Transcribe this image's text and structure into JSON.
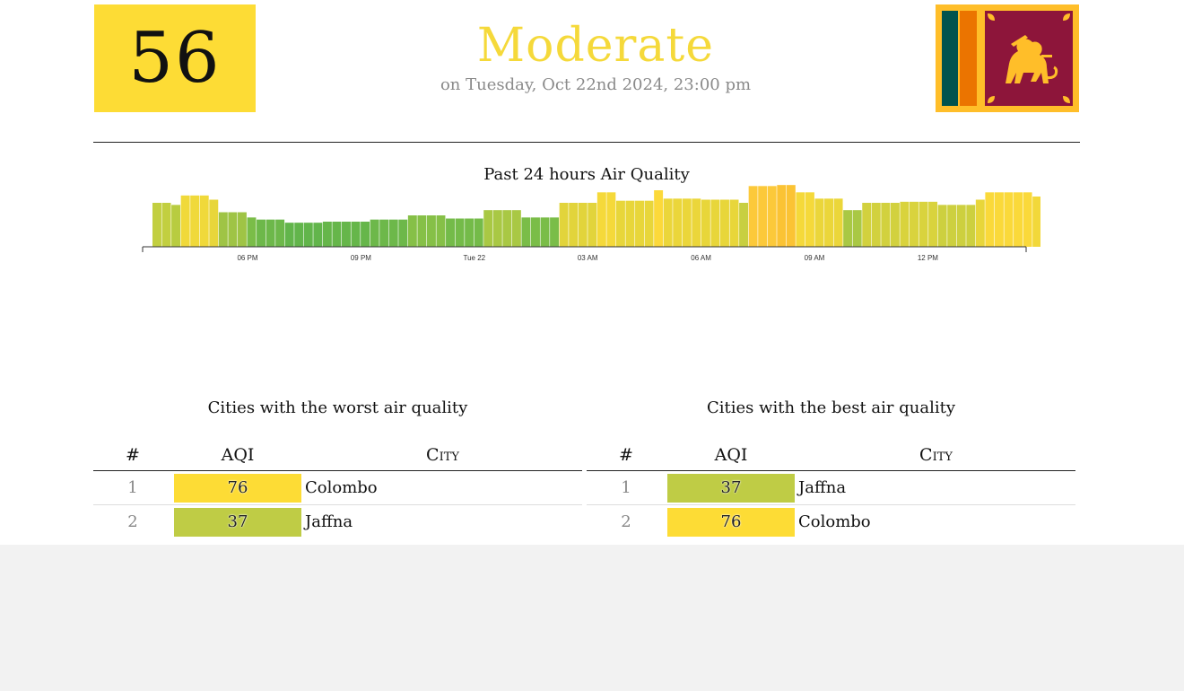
{
  "header": {
    "aqi_value": "56",
    "aqi_color": "#fddc35",
    "status": "Moderate",
    "status_color": "#f5d93a",
    "timestamp": "on Tuesday, Oct 22nd 2024, 23:00 pm",
    "flag_icon": "sri-lanka-flag-icon"
  },
  "chart_data": {
    "type": "bar",
    "title": "Past 24 hours Air Quality",
    "xlabel": "",
    "ylabel": "",
    "tick_labels": [
      "06 PM",
      "09 PM",
      "Tue 22",
      "03 AM",
      "06 AM",
      "09 AM",
      "12 PM"
    ],
    "values": [
      42,
      42,
      40,
      49,
      49,
      49,
      45,
      33,
      33,
      33,
      28,
      26,
      26,
      26,
      23,
      23,
      23,
      23,
      24,
      24,
      24,
      24,
      24,
      26,
      26,
      26,
      26,
      30,
      30,
      30,
      30,
      27,
      27,
      27,
      27,
      35,
      35,
      35,
      35,
      28,
      28,
      28,
      28,
      42,
      42,
      42,
      42,
      52,
      52,
      44,
      44,
      44,
      44,
      54,
      46,
      46,
      46,
      46,
      45,
      45,
      45,
      45,
      42,
      58,
      58,
      58,
      59,
      59,
      52,
      52,
      46,
      46,
      46,
      35,
      35,
      42,
      42,
      42,
      42,
      43,
      43,
      43,
      43,
      40,
      40,
      40,
      40,
      45,
      52,
      52,
      52,
      52,
      52,
      48,
      48,
      48,
      48,
      44,
      44,
      46,
      46,
      46,
      46,
      46,
      51
    ],
    "colors": [
      "#c2cf40",
      "#c2cf40",
      "#b8cc40",
      "#f0d93a",
      "#f0d93a",
      "#f0d93a",
      "#e8d63a",
      "#9fc445",
      "#9fc445",
      "#9fc445",
      "#7abd48",
      "#6db84a",
      "#6db84a",
      "#6db84a",
      "#62b54b",
      "#62b54b",
      "#62b54b",
      "#62b54b",
      "#66b64a",
      "#66b64a",
      "#66b64a",
      "#66b64a",
      "#66b64a",
      "#6db84a",
      "#6db84a",
      "#6db84a",
      "#6db84a",
      "#86c047",
      "#86c047",
      "#86c047",
      "#86c047",
      "#74bb49",
      "#74bb49",
      "#74bb49",
      "#74bb49",
      "#a9c844",
      "#a9c844",
      "#a9c844",
      "#a9c844",
      "#7abd48",
      "#7abd48",
      "#7abd48",
      "#7abd48",
      "#e2d43b",
      "#e2d43b",
      "#e2d43b",
      "#e2d43b",
      "#f5d93a",
      "#f5d93a",
      "#e8d63a",
      "#e8d63a",
      "#e8d63a",
      "#e8d63a",
      "#fcd93a",
      "#ebd63a",
      "#ebd63a",
      "#ebd63a",
      "#ebd63a",
      "#e8d63a",
      "#e8d63a",
      "#e8d63a",
      "#e8d63a",
      "#c8cf40",
      "#fcc93a",
      "#fcc93a",
      "#fcc93a",
      "#fbc334",
      "#fbc334",
      "#f5d93a",
      "#f5d93a",
      "#ebd63a",
      "#ebd63a",
      "#ebd63a",
      "#a9c844",
      "#a9c844",
      "#d2d13e",
      "#d2d13e",
      "#d2d13e",
      "#d2d13e",
      "#d9d33d",
      "#d9d33d",
      "#d9d33d",
      "#d9d33d",
      "#cdd03f",
      "#cdd03f",
      "#cdd03f",
      "#cdd03f",
      "#e8d63a",
      "#fad93a",
      "#fad93a",
      "#fad93a",
      "#fad93a",
      "#fad93a",
      "#f2d83a",
      "#f2d83a",
      "#f2d83a",
      "#f2d83a",
      "#e2d43b",
      "#e2d43b",
      "#ebd63a",
      "#ebd63a",
      "#ebd63a",
      "#ebd63a",
      "#ebd63a",
      "#f7d93a"
    ],
    "ylim": [
      0,
      60
    ],
    "grid": false
  },
  "worst": {
    "title": "Cities with the worst air quality",
    "headers": {
      "rank": "#",
      "aqi": "AQI",
      "city": "City"
    },
    "rows": [
      {
        "rank": "1",
        "aqi": "76",
        "color": "#fddc35",
        "city": "Colombo"
      },
      {
        "rank": "2",
        "aqi": "37",
        "color": "#bfcc45",
        "city": "Jaffna"
      }
    ]
  },
  "best": {
    "title": "Cities with the best air quality",
    "headers": {
      "rank": "#",
      "aqi": "AQI",
      "city": "City"
    },
    "rows": [
      {
        "rank": "1",
        "aqi": "37",
        "color": "#bfcc45",
        "city": "Jaffna"
      },
      {
        "rank": "2",
        "aqi": "76",
        "color": "#fddc35",
        "city": "Colombo"
      }
    ]
  }
}
